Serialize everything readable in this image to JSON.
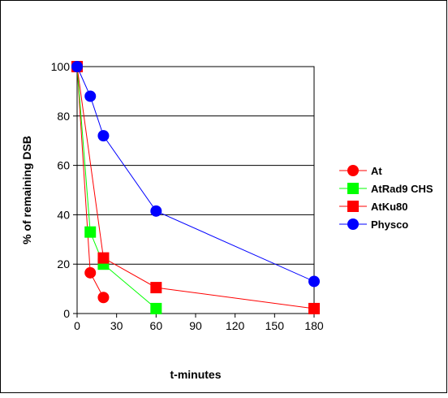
{
  "chart_data": {
    "type": "line",
    "xlabel": "t-minutes",
    "ylabel": "% of remaining DSB",
    "xlim": [
      0,
      180
    ],
    "ylim": [
      0,
      100
    ],
    "xticks": [
      0,
      30,
      60,
      90,
      120,
      150,
      180
    ],
    "yticks": [
      0,
      20,
      40,
      60,
      80,
      100
    ],
    "grid": "horizontal",
    "legend_position": "right",
    "series": [
      {
        "name": "At",
        "color": "#ff0000",
        "marker": "circle",
        "x": [
          0,
          10,
          20
        ],
        "y": [
          100,
          16.5,
          6.5
        ]
      },
      {
        "name": "AtRad9 CHS",
        "color": "#00ff00",
        "marker": "square",
        "x": [
          0,
          10,
          20,
          60
        ],
        "y": [
          100,
          33,
          20,
          2
        ]
      },
      {
        "name": "AtKu80",
        "color": "#ff0000",
        "marker": "square",
        "x": [
          0,
          20,
          60,
          180
        ],
        "y": [
          100,
          22.5,
          10.5,
          2
        ]
      },
      {
        "name": "Physco",
        "color": "#0000ff",
        "marker": "circle",
        "x": [
          0,
          10,
          20,
          60,
          180
        ],
        "y": [
          100,
          88,
          72,
          41.5,
          13
        ]
      }
    ]
  }
}
